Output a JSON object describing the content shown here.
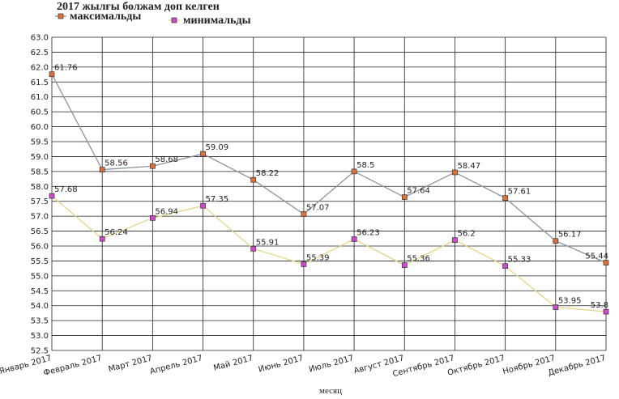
{
  "chart_data": {
    "type": "line",
    "title": "2017 жылғы болжам доп келген",
    "x_label": "месяц",
    "categories": [
      "Январь 2017",
      "Февраль 2017",
      "Март 2017",
      "Апрель 2017",
      "Май 2017",
      "Июнь 2017",
      "Июль 2017",
      "Август 2017",
      "Сентябрь 2017",
      "Октябрь 2017",
      "Ноябрь 2017",
      "Декабрь 2017"
    ],
    "series": [
      {
        "name": "максимальды",
        "color": "#8a949e",
        "marker_color": "#e0703a",
        "values": [
          61.76,
          58.56,
          58.68,
          59.09,
          58.22,
          57.07,
          58.5,
          57.64,
          58.47,
          57.61,
          56.17,
          55.44
        ]
      },
      {
        "name": "минимальды",
        "color": "#e6d58a",
        "marker_color": "#d048d0",
        "values": [
          57.68,
          56.24,
          56.94,
          57.35,
          55.91,
          55.39,
          56.23,
          55.36,
          56.2,
          55.33,
          53.95,
          53.8
        ]
      }
    ],
    "ylim": [
      52.5,
      63
    ],
    "yticks": [
      52.5,
      {
        "value": 53,
        "label": "53.0"
      },
      53.5,
      {
        "value": 54,
        "label": "54.0"
      },
      54.5,
      {
        "value": 55,
        "label": "55.0"
      },
      55.5,
      {
        "value": 56,
        "label": "56.0"
      },
      56.5,
      {
        "value": 57,
        "label": "57.0"
      },
      57.5,
      {
        "value": 58,
        "label": "58.0"
      },
      58.5,
      {
        "value": 59,
        "label": "59.0"
      },
      59.5,
      {
        "value": 60,
        "label": "60.0"
      },
      60.5,
      {
        "value": 61,
        "label": "61.0"
      },
      61.5,
      {
        "value": 62,
        "label": "62.0"
      },
      62.5,
      {
        "value": 63,
        "label": "63.0"
      }
    ],
    "grid": true
  }
}
